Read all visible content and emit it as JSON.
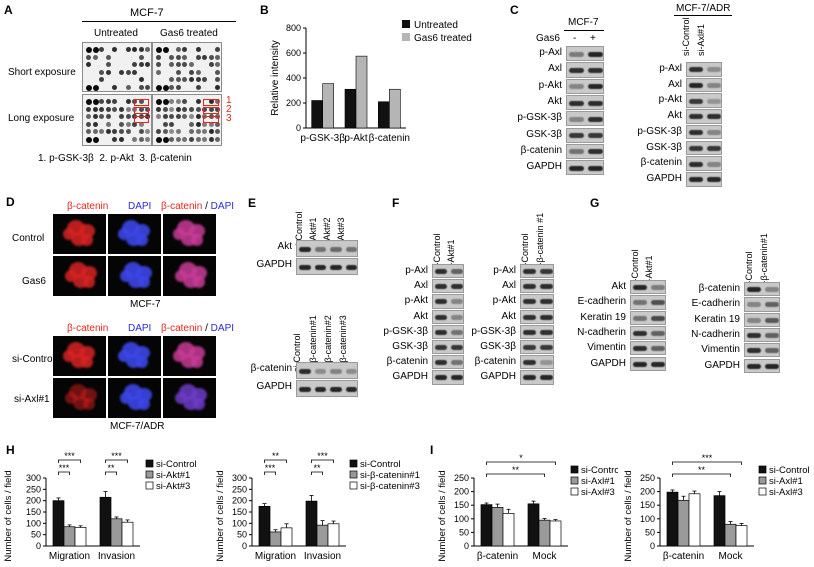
{
  "panels": {
    "A": {
      "label": "A",
      "cell_line": "MCF-7",
      "columns": [
        "Untreated",
        "Gas6 treated"
      ],
      "rows": [
        "Short exposure",
        "Long exposure"
      ],
      "spot_numbers": [
        "1",
        "2",
        "3"
      ],
      "caption": "1. p-GSK-3β  2. p-Akt  3. β-catenin"
    },
    "B": {
      "label": "B"
    },
    "C": {
      "label": "C",
      "left_cell_line": "MCF-7",
      "left_treatment": "Gas6",
      "left_lanes": [
        "-",
        "+"
      ],
      "left_rows": [
        "p-Axl",
        "Axl",
        "p-Akt",
        "Akt",
        "p-GSK-3β",
        "GSK-3β",
        "β-catenin",
        "GAPDH"
      ],
      "right_cell_line": "MCF-7/ADR",
      "right_lanes": [
        "si-Control",
        "si-Axl#1"
      ],
      "right_rows": [
        "p-Axl",
        "Axl",
        "p-Akt",
        "Akt",
        "p-GSK-3β",
        "GSK-3β",
        "β-catenin",
        "GAPDH"
      ]
    },
    "D": {
      "label": "D",
      "top_channels": [
        "β-catenin",
        "DAPI",
        "β-catenin / DAPI"
      ],
      "top_rows": [
        "Control",
        "Gas6"
      ],
      "top_caption": "MCF-7",
      "bottom_channels": [
        "β-catenin",
        "DAPI",
        "β-catenin / DAPI"
      ],
      "bottom_rows": [
        "si-Control",
        "si-Axl#1"
      ],
      "bottom_caption": "MCF-7/ADR"
    },
    "E": {
      "label": "E",
      "top_lanes": [
        "si-Control",
        "si-Akt#1",
        "si-Akt#2",
        "si-Akt#3"
      ],
      "top_rows": [
        "Akt",
        "GAPDH"
      ],
      "bottom_lanes": [
        "si-Control",
        "si-β-catenin#1",
        "si-β-catenin#2",
        "si-β-catenin#3"
      ],
      "bottom_rows": [
        "β-catenin",
        "GAPDH"
      ]
    },
    "F": {
      "label": "F",
      "left_lanes": [
        "si-Control",
        "si-Akt#1"
      ],
      "left_rows": [
        "p-Axl",
        "Axl",
        "p-Akt",
        "Akt",
        "p-GSK-3β",
        "GSK-3β",
        "β-catenin",
        "GAPDH"
      ],
      "right_lanes": [
        "si-Control",
        "si-β-catenin #1"
      ],
      "right_rows": [
        "p-Axl",
        "Axl",
        "p-Akt",
        "Akt",
        "p-GSK-3β",
        "GSK-3β",
        "β-catenin",
        "GAPDH"
      ]
    },
    "G": {
      "label": "G",
      "left_lanes": [
        "si-Control",
        "si-Akt#1"
      ],
      "left_rows": [
        "Akt",
        "E-cadherin",
        "Keratin 19",
        "N-cadherin",
        "Vimentin",
        "GAPDH"
      ],
      "right_lanes": [
        "si-Control",
        "si-β-catenin#1"
      ],
      "right_rows": [
        "β-catenin",
        "E-cadherin",
        "Keratin 19",
        "N-cadherin",
        "Vimentin",
        "GAPDH"
      ]
    },
    "H": {
      "label": "H"
    },
    "I": {
      "label": "I"
    }
  },
  "colors": {
    "black": "#111111",
    "gray": "#9a9a9a",
    "white": "#ffffff",
    "red": "#e8251c",
    "blue": "#2a2ad8"
  },
  "chart_data": [
    {
      "id": "B",
      "type": "bar",
      "categories": [
        "p-GSK-3β",
        "p-Akt",
        "β-catenin"
      ],
      "series": [
        {
          "name": "Untreated",
          "values": [
            220,
            310,
            210
          ]
        },
        {
          "name": "Gas6 treated",
          "values": [
            355,
            575,
            310
          ]
        }
      ],
      "ylabel": "Relative intensity",
      "ylim": [
        0,
        800
      ],
      "yticks": [
        0,
        200,
        400,
        600,
        800
      ],
      "legend": "top-right"
    },
    {
      "id": "H1",
      "type": "bar",
      "categories": [
        "Migration",
        "Invasion"
      ],
      "series": [
        {
          "name": "si-Control",
          "values": [
            200,
            215
          ],
          "errors": [
            12,
            25
          ]
        },
        {
          "name": "si-Akt#1",
          "values": [
            85,
            120
          ],
          "errors": [
            8,
            8
          ]
        },
        {
          "name": "si-Akt#3",
          "values": [
            82,
            105
          ],
          "errors": [
            7,
            10
          ]
        }
      ],
      "ylabel": "Number of cells / field",
      "ylim": [
        0,
        300
      ],
      "yticks": [
        0,
        50,
        100,
        150,
        200,
        250,
        300
      ],
      "significance": [
        "***",
        "***",
        "***",
        "**"
      ],
      "legend": "right"
    },
    {
      "id": "H2",
      "type": "bar",
      "categories": [
        "Migration",
        "Invasion"
      ],
      "series": [
        {
          "name": "si-Control",
          "values": [
            175,
            198
          ],
          "errors": [
            12,
            25
          ]
        },
        {
          "name": "si-β-catenin#1",
          "values": [
            62,
            92
          ],
          "errors": [
            10,
            20
          ]
        },
        {
          "name": "si-β-catenin#3",
          "values": [
            80,
            98
          ],
          "errors": [
            18,
            12
          ]
        }
      ],
      "ylabel": "Number of cells / field",
      "ylim": [
        0,
        300
      ],
      "yticks": [
        0,
        50,
        100,
        150,
        200,
        250,
        300
      ],
      "significance": [
        "**",
        "***",
        "***",
        "**"
      ],
      "legend": "right"
    },
    {
      "id": "I1",
      "type": "bar",
      "categories": [
        "β-catenin",
        "Mock"
      ],
      "series": [
        {
          "name": "si-Control",
          "values": [
            152,
            155
          ],
          "errors": [
            6,
            10
          ]
        },
        {
          "name": "si-Axl#1",
          "values": [
            142,
            95
          ],
          "errors": [
            12,
            6
          ]
        },
        {
          "name": "si-Axl#3",
          "values": [
            120,
            92
          ],
          "errors": [
            15,
            5
          ]
        }
      ],
      "ylabel": "Number of cells / field",
      "ylim": [
        0,
        250
      ],
      "yticks": [
        0,
        50,
        100,
        150,
        200,
        250
      ],
      "significance": [
        "*",
        "**"
      ],
      "legend": "right"
    },
    {
      "id": "I2",
      "type": "bar",
      "categories": [
        "β-catenin",
        "Mock"
      ],
      "series": [
        {
          "name": "si-Control",
          "values": [
            198,
            185
          ],
          "errors": [
            8,
            15
          ]
        },
        {
          "name": "si-Axl#1",
          "values": [
            168,
            80
          ],
          "errors": [
            15,
            10
          ]
        },
        {
          "name": "si-Axl#3",
          "values": [
            192,
            75
          ],
          "errors": [
            10,
            8
          ]
        }
      ],
      "ylabel": "Number of cells / field",
      "ylim": [
        0,
        250
      ],
      "yticks": [
        0,
        50,
        100,
        150,
        200,
        250
      ],
      "significance": [
        "***",
        "**"
      ],
      "legend": "right"
    }
  ]
}
